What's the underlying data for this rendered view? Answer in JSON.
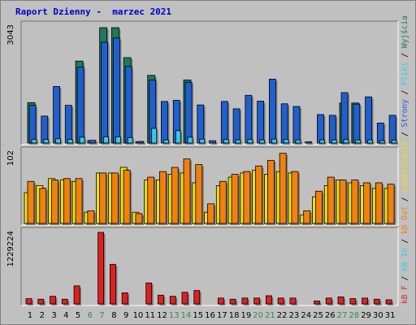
{
  "title": "Raport Dzienny -  marzec 2021",
  "colors": {
    "wizyty": "#1f7a5a",
    "strony": "#1f5fd0",
    "pliki": "#33ccee",
    "lokalizacje": "#f0e000",
    "kb_out": "#f08010",
    "kb_in": "#e02020",
    "panel_bg": "#c0c0c0",
    "weekend_label": "#2e8b57",
    "weekday_label": "#000000"
  },
  "legend": [
    {
      "text": "Wyjścia",
      "color": "#1f7a5a",
      "bind": "legend.0.text"
    },
    {
      "text": "/",
      "color": "#000000"
    },
    {
      "text": "Pliki",
      "color": "#33ccee"
    },
    {
      "text": "/",
      "color": "#000000"
    },
    {
      "text": "Strony",
      "color": "#1f5fd0"
    },
    {
      "text": "/",
      "color": "#000000"
    },
    {
      "text": "Lokalizacje",
      "color": "#f0e000"
    },
    {
      "text": "/",
      "color": "#000000"
    },
    {
      "text": "kB Out",
      "color": "#f08010"
    },
    {
      "text": "/",
      "color": "#000000"
    },
    {
      "text": "kB In",
      "color": "#33ccee"
    },
    {
      "text": "/",
      "color": "#000000"
    },
    {
      "text": "kB F",
      "color": "#e02020"
    }
  ],
  "chart_data": [
    {
      "type": "bar",
      "panel": "top",
      "ymax_label": "3043",
      "ylim": [
        0,
        3043
      ],
      "x": [
        1,
        2,
        3,
        4,
        5,
        6,
        7,
        8,
        9,
        10,
        11,
        12,
        13,
        14,
        15,
        16,
        17,
        18,
        19,
        20,
        21,
        22,
        23,
        24,
        25,
        26,
        27,
        28,
        29,
        30,
        31
      ],
      "series": [
        {
          "name": "Wyjścia",
          "values": [
            1050,
            0,
            0,
            0,
            2130,
            60,
            3000,
            3000,
            2220,
            30,
            1760,
            0,
            0,
            1640,
            0,
            0,
            0,
            0,
            0,
            0,
            0,
            0,
            0,
            0,
            0,
            0,
            1040,
            1040,
            0,
            0,
            0
          ]
        },
        {
          "name": "Strony",
          "values": [
            980,
            700,
            1470,
            980,
            1970,
            70,
            2620,
            2730,
            1990,
            40,
            1640,
            1080,
            1110,
            1580,
            990,
            60,
            1080,
            890,
            1240,
            1090,
            1660,
            1020,
            950,
            30,
            740,
            720,
            1310,
            1010,
            1200,
            520,
            720
          ]
        },
        {
          "name": "Pliki",
          "values": [
            90,
            90,
            110,
            90,
            150,
            0,
            160,
            160,
            140,
            0,
            380,
            80,
            320,
            150,
            100,
            0,
            90,
            80,
            90,
            80,
            100,
            90,
            80,
            0,
            80,
            80,
            90,
            80,
            80,
            60,
            70
          ]
        }
      ]
    },
    {
      "type": "bar",
      "panel": "middle",
      "ymax_label": "102",
      "ylim": [
        0,
        102
      ],
      "x": [
        1,
        2,
        3,
        4,
        5,
        6,
        7,
        8,
        9,
        10,
        11,
        12,
        13,
        14,
        15,
        16,
        17,
        18,
        19,
        20,
        21,
        22,
        23,
        24,
        25,
        26,
        27,
        28,
        29,
        30,
        31
      ],
      "series": [
        {
          "name": "Lokalizacje",
          "values": [
            44,
            54,
            64,
            62,
            60,
            16,
            72,
            72,
            80,
            16,
            62,
            62,
            70,
            72,
            58,
            16,
            54,
            66,
            72,
            76,
            70,
            74,
            72,
            12,
            38,
            54,
            62,
            58,
            54,
            50,
            50
          ]
        },
        {
          "name": "kB Out",
          "values": [
            60,
            50,
            62,
            64,
            64,
            18,
            72,
            72,
            76,
            14,
            66,
            74,
            80,
            92,
            84,
            28,
            60,
            70,
            74,
            82,
            90,
            100,
            74,
            18,
            46,
            66,
            62,
            62,
            58,
            58,
            56
          ]
        }
      ]
    },
    {
      "type": "bar",
      "panel": "bottom",
      "ymax_label": "1229224",
      "ylim": [
        0,
        1229224
      ],
      "x": [
        1,
        2,
        3,
        4,
        5,
        6,
        7,
        8,
        9,
        10,
        11,
        12,
        13,
        14,
        15,
        16,
        17,
        18,
        19,
        20,
        21,
        22,
        23,
        24,
        25,
        26,
        27,
        28,
        29,
        30,
        31
      ],
      "series": [
        {
          "name": "kB F",
          "values": [
            90000,
            80000,
            130000,
            80000,
            310000,
            0,
            1229224,
            680000,
            190000,
            0,
            360000,
            150000,
            130000,
            200000,
            230000,
            0,
            100000,
            80000,
            100000,
            100000,
            140000,
            100000,
            100000,
            0,
            50000,
            100000,
            120000,
            90000,
            100000,
            80000,
            70000
          ]
        }
      ]
    }
  ],
  "x_labels": [
    "1",
    "2",
    "3",
    "4",
    "5",
    "6",
    "7",
    "8",
    "9",
    "10",
    "11",
    "12",
    "13",
    "14",
    "15",
    "16",
    "17",
    "18",
    "19",
    "20",
    "21",
    "22",
    "23",
    "24",
    "25",
    "26",
    "27",
    "28",
    "29",
    "30",
    "31"
  ],
  "weekend_days": [
    6,
    7,
    13,
    14,
    20,
    21,
    27,
    28
  ]
}
